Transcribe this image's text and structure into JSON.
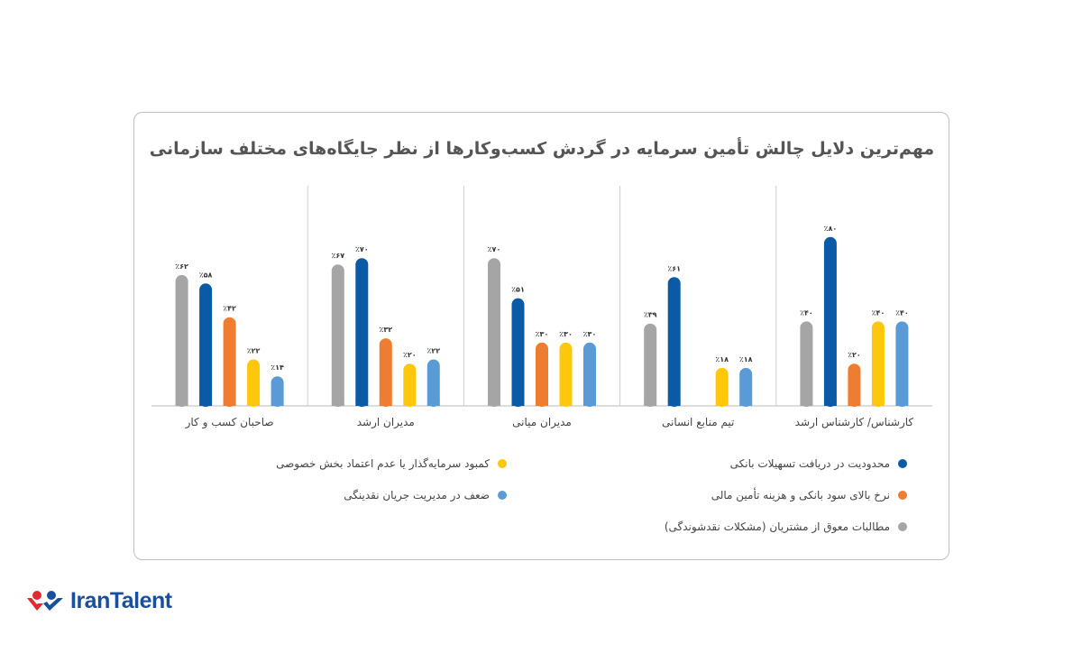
{
  "chart_data": {
    "type": "bar",
    "title": "مهم‌ترین دلایل چالش تأمین سرمایه در گردش کسب‌وکارها از نظر جایگاه‌های مختلف سازمانی",
    "categories": [
      "کارشناس/ کارشناس ارشد",
      "تیم منابع انسانی",
      "مدیران میانی",
      "مدیران ارشد",
      "صاحبان کسب و کار"
    ],
    "category_order": "right-to-left",
    "unit": "٪",
    "grid": false,
    "legend_placement": "bottom",
    "series": [
      {
        "name": "مطالبات معوق از مشتریان (مشکلات نقدشوندگی)",
        "color": "#a5a5a5",
        "values": [
          40,
          39,
          70,
          67,
          62
        ]
      },
      {
        "name": "محدودیت در دریافت تسهیلات بانکی",
        "color": "#0b5aa6",
        "values": [
          80,
          61,
          51,
          70,
          58
        ]
      },
      {
        "name": "نرخ بالای سود بانکی و هزینه تأمین مالی",
        "color": "#ef7d31",
        "values": [
          20,
          null,
          30,
          32,
          42
        ]
      },
      {
        "name": "کمبود سرمایه‌گذار یا عدم اعتماد بخش خصوصی",
        "color": "#fdc80b",
        "values": [
          40,
          18,
          30,
          20,
          22
        ]
      },
      {
        "name": "ضعف در مدیریت جریان نقدینگی",
        "color": "#5b9bd5",
        "values": [
          40,
          18,
          30,
          22,
          14
        ]
      }
    ]
  },
  "logo": {
    "text": "IranTalent",
    "colors": {
      "red": "#e02a2f",
      "blue": "#1a4f9c"
    }
  }
}
